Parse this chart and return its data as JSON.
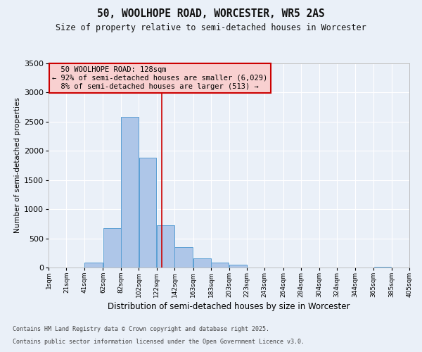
{
  "title1": "50, WOOLHOPE ROAD, WORCESTER, WR5 2AS",
  "title2": "Size of property relative to semi-detached houses in Worcester",
  "xlabel": "Distribution of semi-detached houses by size in Worcester",
  "ylabel": "Number of semi-detached properties",
  "annotation_title": "50 WOOLHOPE ROAD: 128sqm",
  "annotation_line1": "← 92% of semi-detached houses are smaller (6,029)",
  "annotation_line2": "8% of semi-detached houses are larger (513) →",
  "property_size": 128,
  "bar_left_edges": [
    1,
    21,
    41,
    62,
    82,
    102,
    122,
    142,
    163,
    183,
    203,
    223,
    243,
    264,
    284,
    304,
    324,
    344,
    365,
    385
  ],
  "bar_widths": [
    20,
    20,
    21,
    20,
    20,
    20,
    20,
    21,
    20,
    20,
    20,
    20,
    21,
    20,
    20,
    20,
    20,
    21,
    20,
    20
  ],
  "bar_heights": [
    0,
    0,
    80,
    680,
    2580,
    1880,
    730,
    350,
    160,
    80,
    50,
    0,
    0,
    0,
    0,
    0,
    0,
    0,
    10,
    0
  ],
  "bar_color": "#aec6e8",
  "bar_edge_color": "#5a9fd4",
  "vline_color": "#cc0000",
  "vline_x": 128,
  "ylim": [
    0,
    3500
  ],
  "yticks": [
    0,
    500,
    1000,
    1500,
    2000,
    2500,
    3000,
    3500
  ],
  "xtick_labels": [
    "1sqm",
    "21sqm",
    "41sqm",
    "62sqm",
    "82sqm",
    "102sqm",
    "122sqm",
    "142sqm",
    "163sqm",
    "183sqm",
    "203sqm",
    "223sqm",
    "243sqm",
    "264sqm",
    "284sqm",
    "304sqm",
    "324sqm",
    "344sqm",
    "365sqm",
    "385sqm",
    "405sqm"
  ],
  "xtick_positions": [
    1,
    21,
    41,
    62,
    82,
    102,
    122,
    142,
    163,
    183,
    203,
    223,
    243,
    264,
    284,
    304,
    324,
    344,
    365,
    385,
    405
  ],
  "bg_color": "#eaf0f8",
  "plot_bg_color": "#eaf0f8",
  "grid_color": "#ffffff",
  "footer1": "Contains HM Land Registry data © Crown copyright and database right 2025.",
  "footer2": "Contains public sector information licensed under the Open Government Licence v3.0.",
  "annotation_box_facecolor": "#f8d0d0",
  "annotation_box_edge": "#cc0000"
}
